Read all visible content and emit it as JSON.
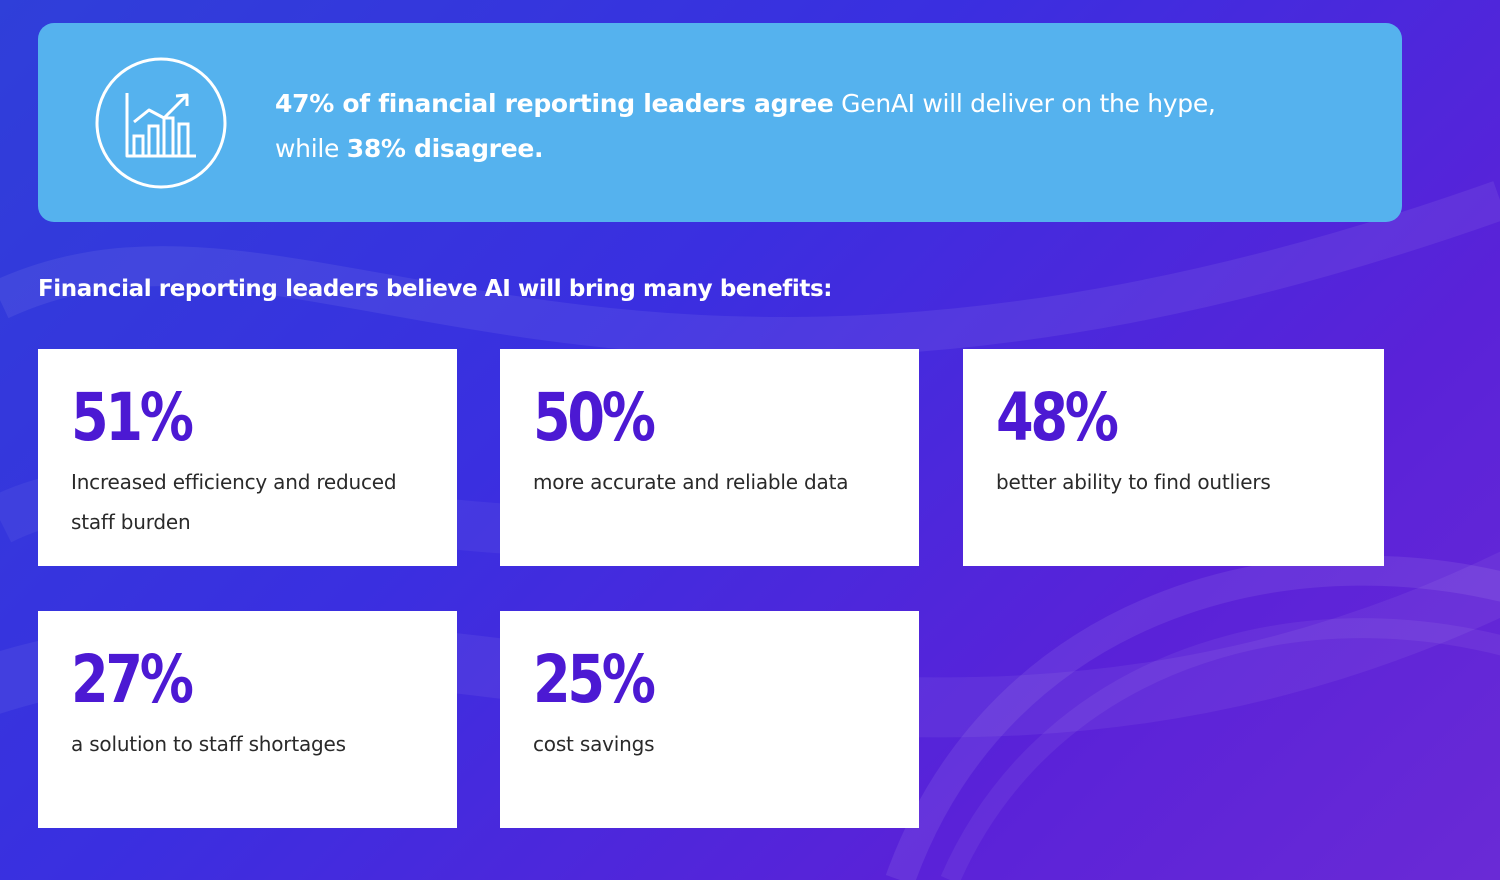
{
  "banner": {
    "icon": "rising-bar-chart-icon",
    "stat1_bold": "47% of financial reporting leaders agree",
    "stat1_rest": " GenAI will deliver on the hype,",
    "line2_prefix": "while ",
    "stat2_bold": "38% disagree."
  },
  "heading": "Financial reporting leaders believe AI will bring many benefits:",
  "cards": [
    {
      "value": "51%",
      "label": "Increased efficiency and reduced staff burden"
    },
    {
      "value": "50%",
      "label": "more accurate and reliable data"
    },
    {
      "value": "48%",
      "label": "better ability to find outliers"
    },
    {
      "value": "27%",
      "label": "a solution to staff shortages"
    },
    {
      "value": "25%",
      "label": "cost savings"
    }
  ],
  "colors": {
    "banner": "#55b2ee",
    "accent": "#4c19d3",
    "background": "#3a2fe0"
  }
}
